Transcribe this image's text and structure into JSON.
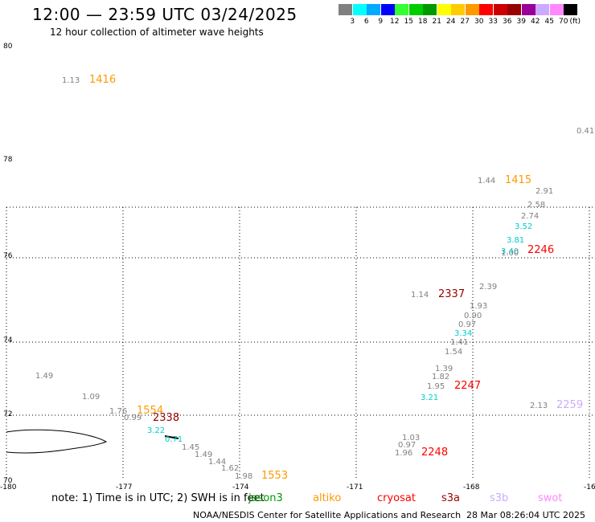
{
  "header": {
    "title": "12:00 — 23:59 UTC 03/24/2025",
    "subtitle": "12 hour collection of altimeter wave heights"
  },
  "legend": {
    "colors": [
      "#808080",
      "#00ffff",
      "#00aaff",
      "#0000ff",
      "#33ff33",
      "#00cc00",
      "#009900",
      "#ffff00",
      "#ffcc00",
      "#ff9900",
      "#ff0000",
      "#cc0000",
      "#990000",
      "#990099",
      "#ccaaff",
      "#ff88ff",
      "#000000"
    ],
    "labels": [
      "3",
      "6",
      "9",
      "12",
      "15",
      "18",
      "21",
      "24",
      "27",
      "30",
      "33",
      "36",
      "39",
      "42",
      "45",
      "70"
    ],
    "units": "(ft)"
  },
  "map": {
    "y_axis_labels": [
      "80",
      "78",
      "76",
      "74",
      "72",
      "70"
    ],
    "x_axis_labels": [
      "-180",
      "-177",
      "-174",
      "-171",
      "-168",
      "-16"
    ]
  },
  "observations": [
    {
      "text": "1.13",
      "color": "#808080"
    },
    {
      "text": "1416",
      "color": "#ff9900"
    },
    {
      "text": "0.41",
      "color": "#808080"
    },
    {
      "text": "1.44",
      "color": "#808080"
    },
    {
      "text": "1415",
      "color": "#ff9900"
    },
    {
      "text": "2.91",
      "color": "#808080"
    },
    {
      "text": "2.58",
      "color": "#808080"
    },
    {
      "text": "2.74",
      "color": "#808080"
    },
    {
      "text": "3.52",
      "color": "#00cccc"
    },
    {
      "text": "3.81",
      "color": "#00cccc"
    },
    {
      "text": "3.40",
      "color": "#00cccc"
    },
    {
      "text": "1.00",
      "color": "#808080"
    },
    {
      "text": "2246",
      "color": "#ff0000"
    },
    {
      "text": "2.39",
      "color": "#808080"
    },
    {
      "text": "1.14",
      "color": "#808080"
    },
    {
      "text": "2337",
      "color": "#990000"
    },
    {
      "text": "1.93",
      "color": "#808080"
    },
    {
      "text": "0.90",
      "color": "#808080"
    },
    {
      "text": "0.97",
      "color": "#808080"
    },
    {
      "text": "3.34",
      "color": "#00cccc"
    },
    {
      "text": "1.41",
      "color": "#808080"
    },
    {
      "text": "1.54",
      "color": "#808080"
    },
    {
      "text": "1.39",
      "color": "#808080"
    },
    {
      "text": "1.82",
      "color": "#808080"
    },
    {
      "text": "1.95",
      "color": "#808080"
    },
    {
      "text": "2247",
      "color": "#ff0000"
    },
    {
      "text": "3.21",
      "color": "#00cccc"
    },
    {
      "text": "2.13",
      "color": "#808080"
    },
    {
      "text": "2259",
      "color": "#ccaaff"
    },
    {
      "text": "1.49",
      "color": "#808080"
    },
    {
      "text": "1.09",
      "color": "#808080"
    },
    {
      "text": "1.76",
      "color": "#808080"
    },
    {
      "text": "1554",
      "color": "#ff9900"
    },
    {
      "text": "0.99",
      "color": "#808080"
    },
    {
      "text": "2338",
      "color": "#990000"
    },
    {
      "text": "3.22",
      "color": "#00cccc"
    },
    {
      "text": "0.71",
      "color": "#00cccc"
    },
    {
      "text": "1.45",
      "color": "#808080"
    },
    {
      "text": "1.49",
      "color": "#808080"
    },
    {
      "text": "1.44",
      "color": "#808080"
    },
    {
      "text": "1.62",
      "color": "#808080"
    },
    {
      "text": "1.98",
      "color": "#808080"
    },
    {
      "text": "1553",
      "color": "#ff9900"
    },
    {
      "text": "1.03",
      "color": "#808080"
    },
    {
      "text": "0.97",
      "color": "#808080"
    },
    {
      "text": "1.96",
      "color": "#808080"
    },
    {
      "text": "2248",
      "color": "#ff0000"
    }
  ],
  "note": {
    "text": "note: 1) Time is in UTC; 2) SWH is in feet",
    "satellites": [
      {
        "name": "jason3",
        "color": "#009900"
      },
      {
        "name": "altiko",
        "color": "#ff9900"
      },
      {
        "name": "cryosat",
        "color": "#ff0000"
      },
      {
        "name": "s3a",
        "color": "#990000"
      },
      {
        "name": "s3b",
        "color": "#ccaaff"
      },
      {
        "name": "swot",
        "color": "#ff88ff"
      }
    ]
  },
  "footer": {
    "left": "NOAA/NESDIS Center for Satellite Applications and Research",
    "right": "28 Mar 08:26:04 UTC 2025"
  }
}
